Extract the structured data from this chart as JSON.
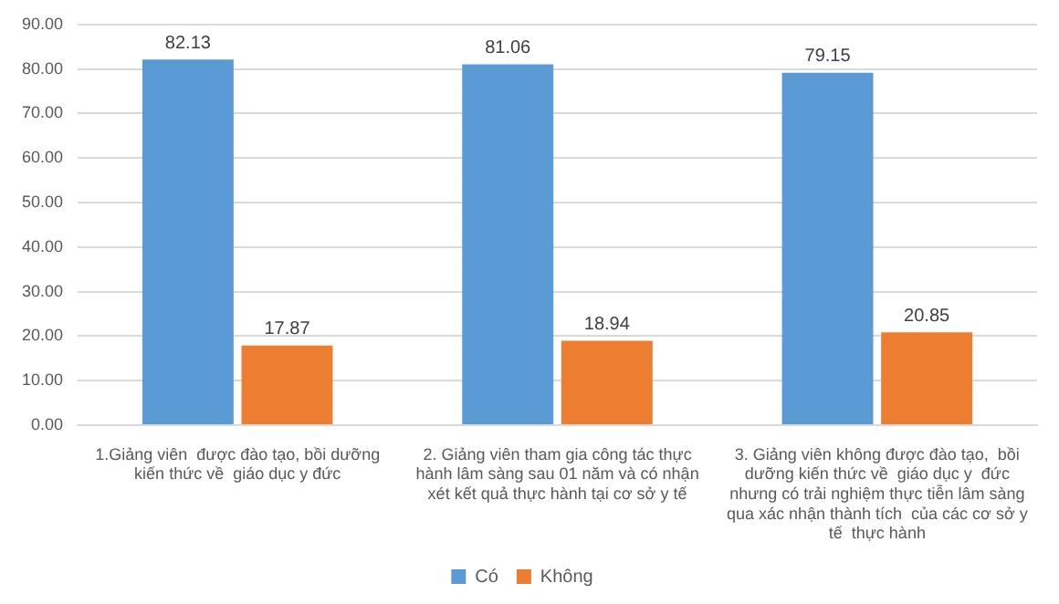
{
  "chart_data": {
    "type": "bar",
    "categories": [
      "1.Giảng viên  được đào tạo, bồi dưỡng kiến thức về  giáo dục y đức",
      "2. Giảng viên tham gia công tác thực hành lâm sàng sau 01 năm và có nhận xét kết quả thực hành tại cơ sở y tế",
      "3. Giảng viên không được đào tạo,  bồi dưỡng kiến thức về  giáo dục y  đức nhưng có trải nghiệm thực tiễn lâm sàng qua xác nhận thành tích  của các cơ sở y tế  thực hành"
    ],
    "series": [
      {
        "name": "Có",
        "color": "#5b9bd5",
        "values": [
          82.13,
          81.06,
          79.15
        ]
      },
      {
        "name": "Không",
        "color": "#ed7d31",
        "values": [
          17.87,
          18.94,
          20.85
        ]
      }
    ],
    "ylim": [
      0,
      90
    ],
    "yticks": [
      {
        "value": 0,
        "label": "0.00"
      },
      {
        "value": 10,
        "label": "10.00"
      },
      {
        "value": 20,
        "label": "20.00"
      },
      {
        "value": 30,
        "label": "30.00"
      },
      {
        "value": 40,
        "label": "40.00"
      },
      {
        "value": 50,
        "label": "50.00"
      },
      {
        "value": 60,
        "label": "60.00"
      },
      {
        "value": 70,
        "label": "70.00"
      },
      {
        "value": 80,
        "label": "80.00"
      },
      {
        "value": 90,
        "label": "90.00"
      }
    ],
    "grid": "y",
    "legend": "bottom",
    "data_labels": true
  }
}
